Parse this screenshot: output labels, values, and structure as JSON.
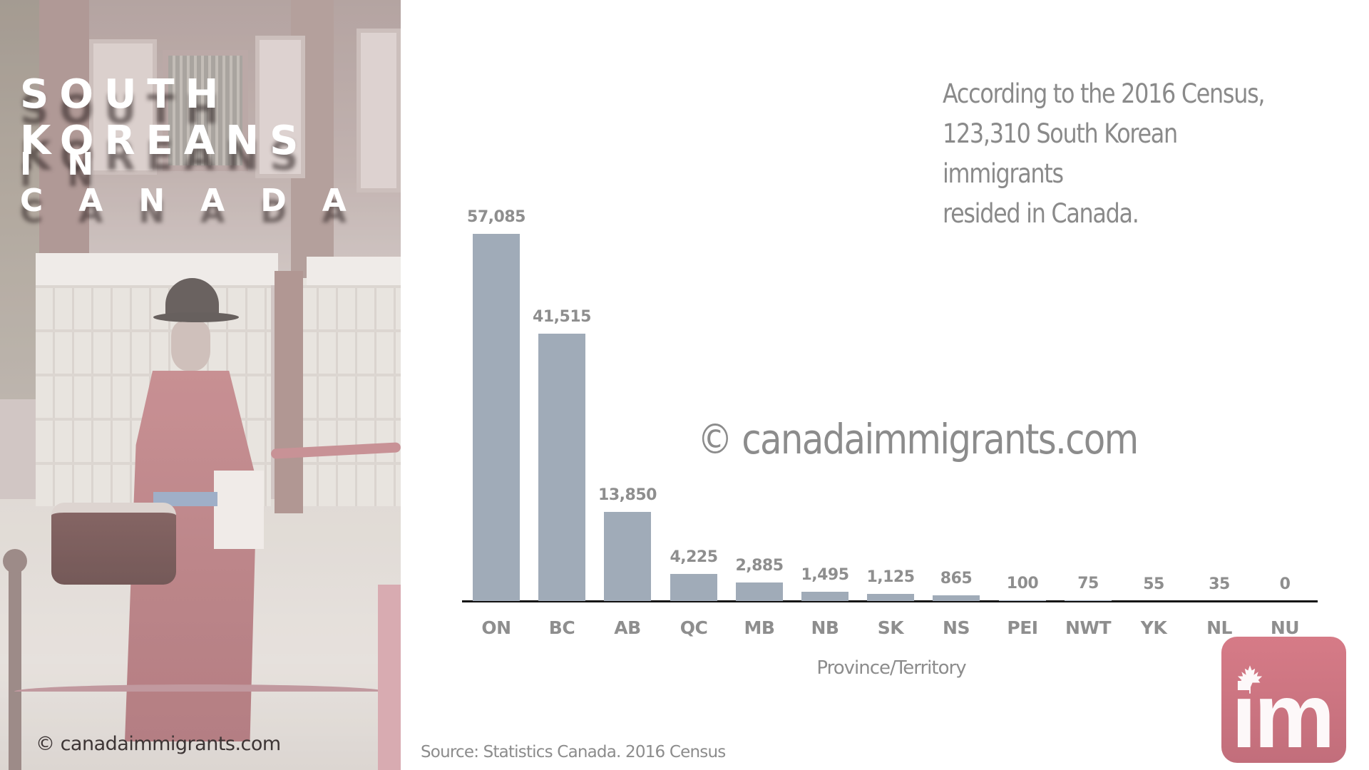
{
  "left_panel": {
    "title_line1": "SOUTH KOREANS",
    "title_line2": "IN CANADA",
    "photo_description": "Korean royal guard in red robe and black hat carrying a drum in front of a palace wall",
    "credit": "© canadaimmigrants.com"
  },
  "summary": {
    "line1": "According to the 2016 Census,",
    "line2": "123,310 South Korean immigrants",
    "line3": "resided in Canada."
  },
  "watermark": "© canadaimmigrants.com",
  "source": "Source: Statistics Canada. 2016 Census",
  "logo": {
    "text": "im",
    "icon": "maple-leaf-icon",
    "color": "#c9737f"
  },
  "colors": {
    "bar": "#a0abb8",
    "label": "#8e8e8e",
    "axis": "#111111",
    "logo": "#c9737f"
  },
  "chart_data": {
    "type": "bar",
    "title": "South Koreans in Canada",
    "subtitle": "According to the 2016 Census, 123,310 South Korean immigrants resided in Canada.",
    "xlabel": "Province/Territory",
    "ylabel": "",
    "categories": [
      "ON",
      "BC",
      "AB",
      "QC",
      "MB",
      "NB",
      "SK",
      "NS",
      "PEI",
      "NWT",
      "YK",
      "NL",
      "NU"
    ],
    "values": [
      57085,
      41515,
      13850,
      4225,
      2885,
      1495,
      1125,
      865,
      100,
      75,
      55,
      35,
      0
    ],
    "value_labels": [
      "57,085",
      "41,515",
      "13,850",
      "4,225",
      "2,885",
      "1,495",
      "1,125",
      "865",
      "100",
      "75",
      "55",
      "35",
      "0"
    ],
    "ylim": [
      0,
      57085
    ],
    "grid": false,
    "legend": "none",
    "data_labels": "above bars",
    "source": "Source: Statistics Canada. 2016 Census"
  }
}
